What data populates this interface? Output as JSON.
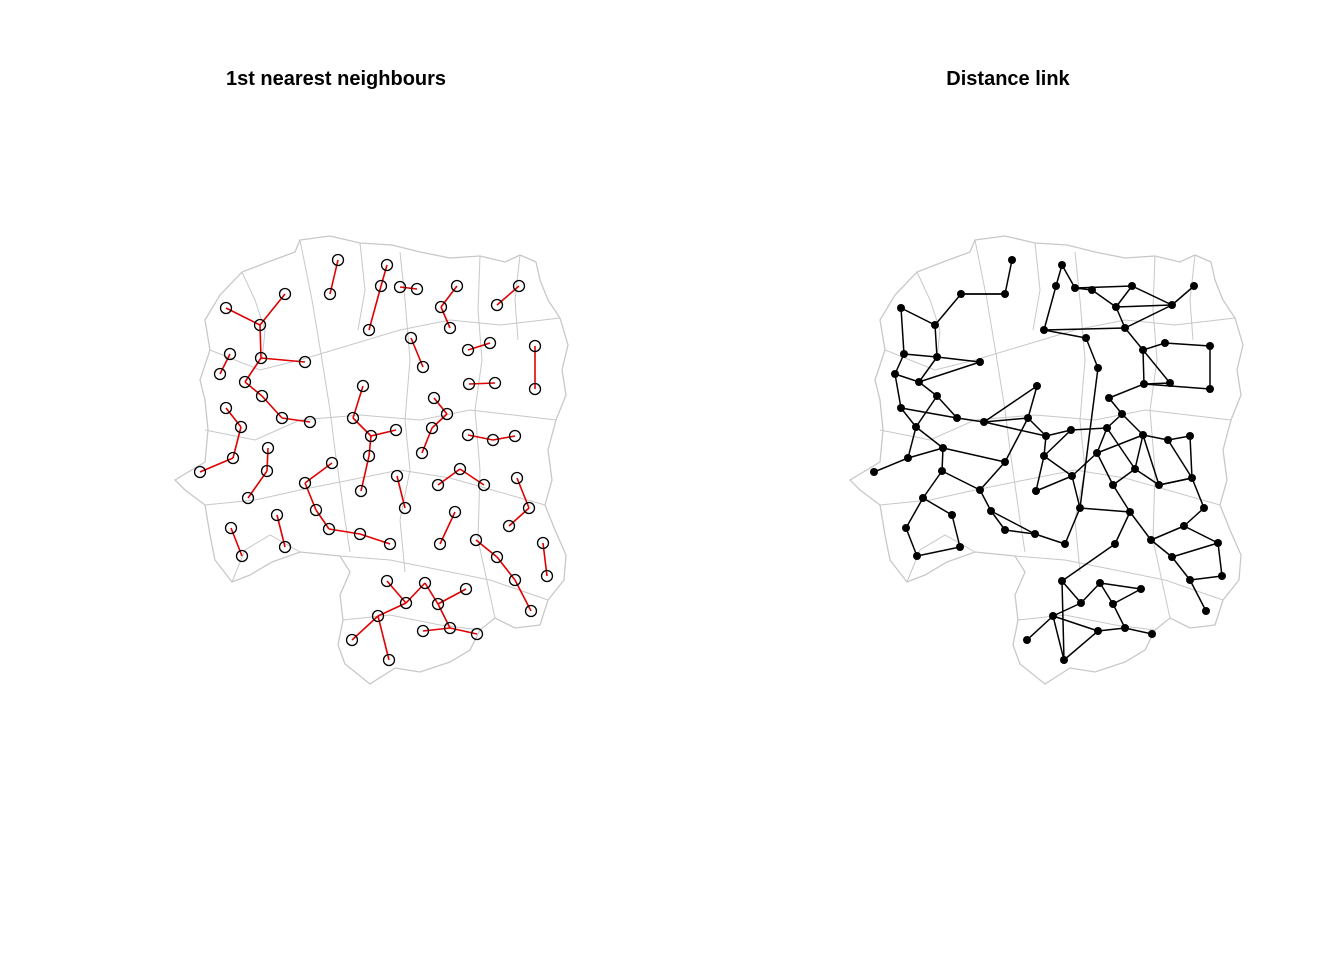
{
  "panels": [
    {
      "title": "1st nearest neighbours"
    },
    {
      "title": "Distance link"
    }
  ],
  "colors": {
    "boundary": "#c8c8c8",
    "knn_link": "#e00000",
    "knn_node": "#000000",
    "distance_link": "#000000"
  }
}
